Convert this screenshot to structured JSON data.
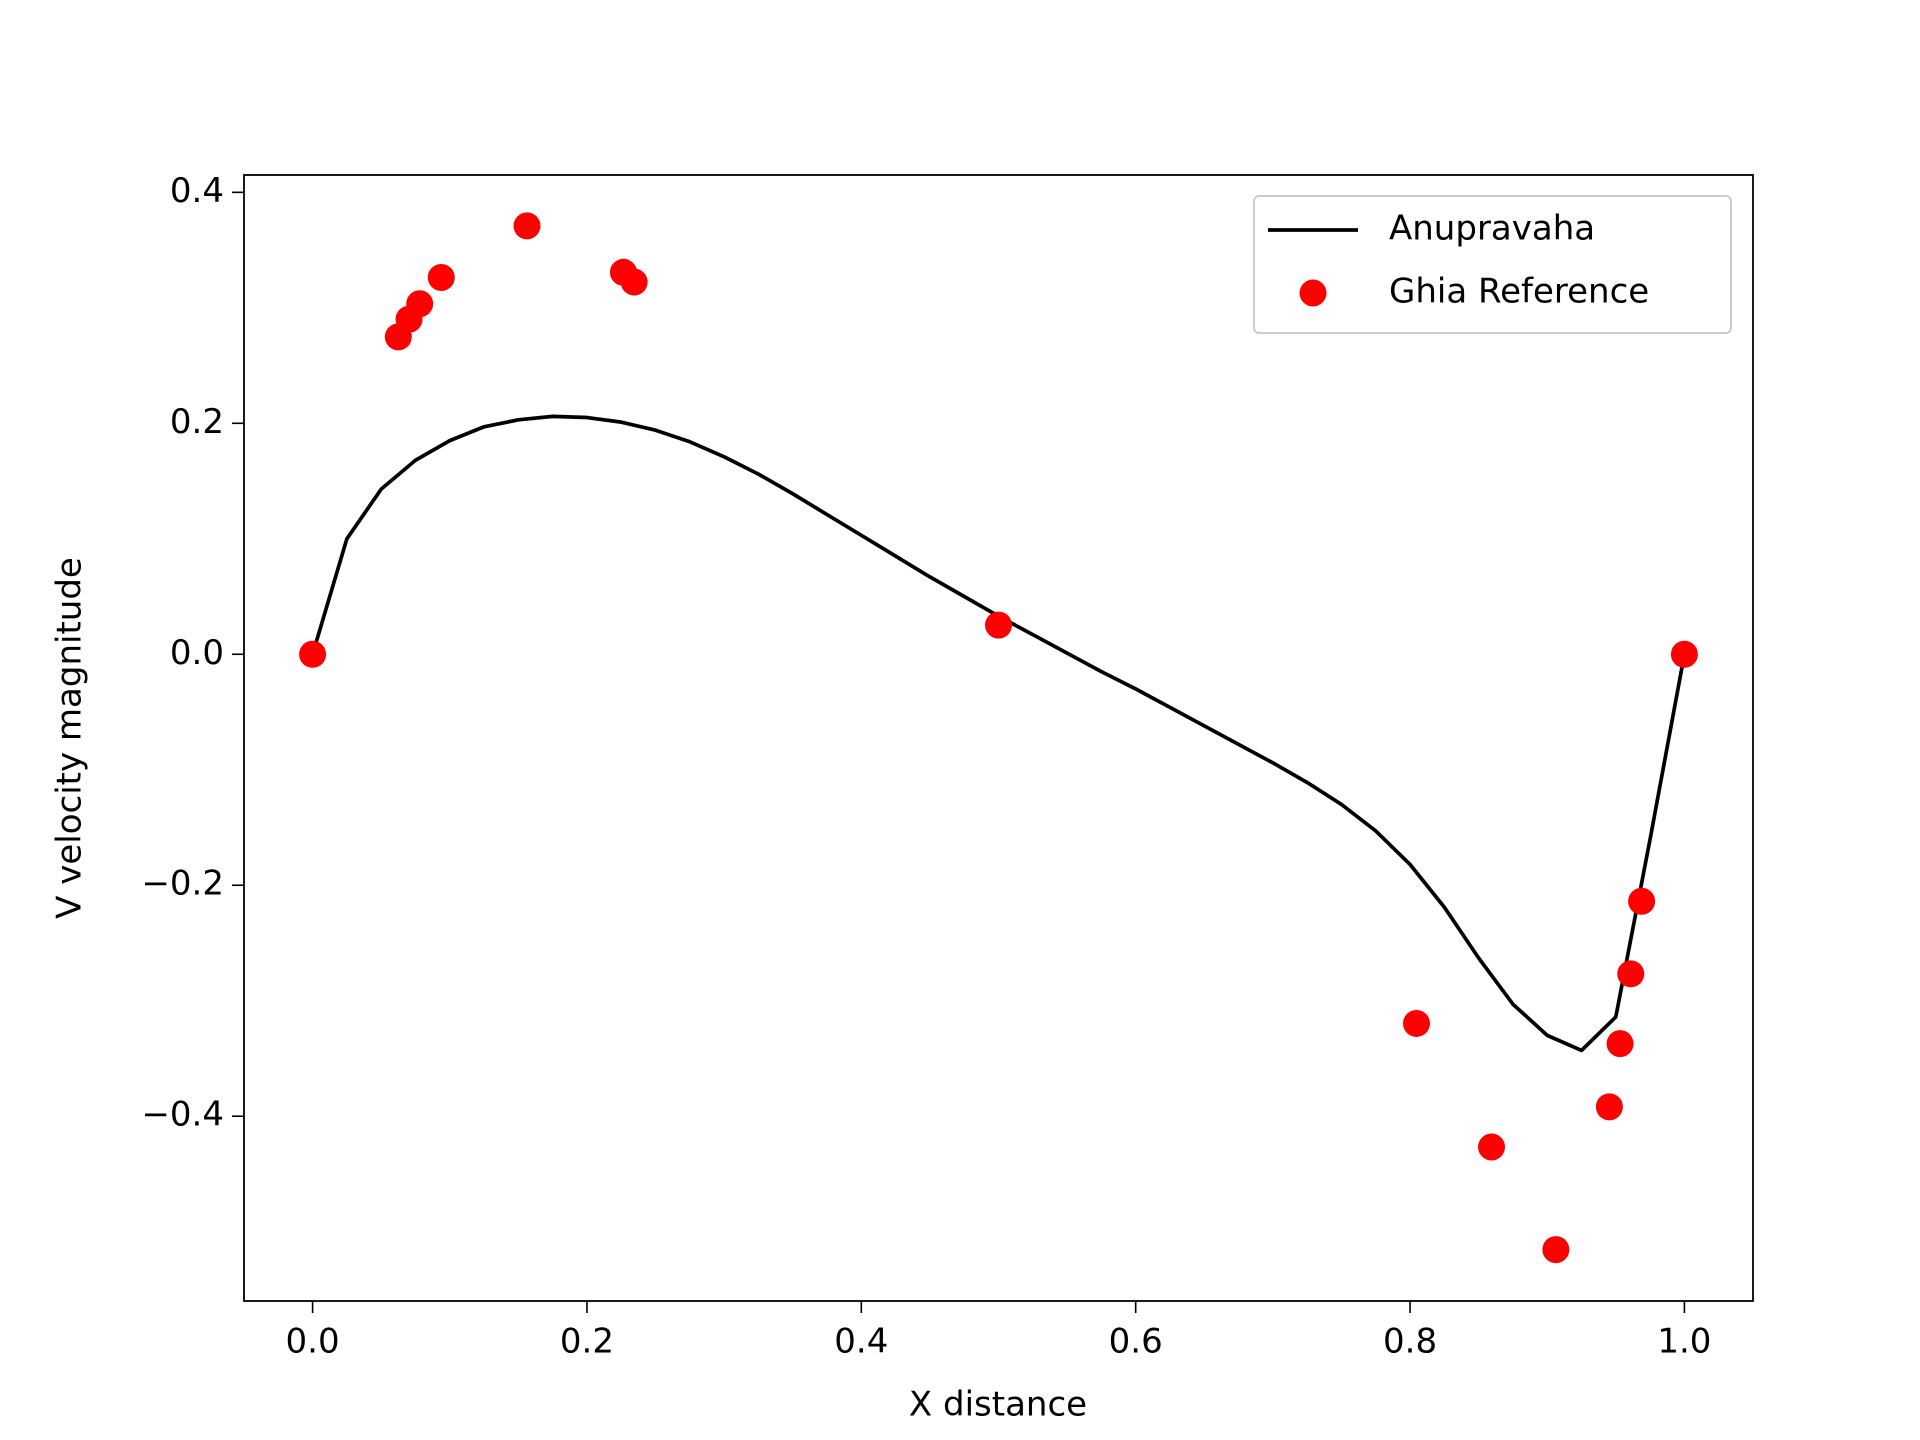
{
  "chart_data": {
    "type": "line",
    "x_label": "X distance",
    "y_label": "V velocity magnitude",
    "xlim": [
      -0.05,
      1.05
    ],
    "ylim": [
      -0.56,
      0.415
    ],
    "xticks": [
      {
        "value": 0,
        "label": "0.0"
      },
      0.2,
      0.4,
      0.6,
      0.8,
      {
        "value": 1,
        "label": "1.0"
      }
    ],
    "yticks": [
      {
        "value": -0.4,
        "label": "−0.4"
      },
      {
        "value": -0.2,
        "label": "−0.2"
      },
      {
        "value": 0,
        "label": "0.0"
      },
      0.2,
      0.4
    ],
    "legend": "upper right",
    "series": [
      {
        "name": "Anupravaha",
        "type": "line",
        "color": "#000000",
        "x": [
          0,
          0.025,
          0.05,
          0.075,
          0.1,
          0.125,
          0.15,
          0.175,
          0.2,
          0.225,
          0.25,
          0.275,
          0.3,
          0.325,
          0.35,
          0.375,
          0.4,
          0.425,
          0.45,
          0.475,
          0.5,
          0.525,
          0.55,
          0.575,
          0.6,
          0.625,
          0.65,
          0.675,
          0.7,
          0.725,
          0.75,
          0.775,
          0.8,
          0.825,
          0.85,
          0.875,
          0.9,
          0.925,
          0.95,
          0.975,
          1.0
        ],
        "values": [
          0,
          0.1,
          0.143,
          0.168,
          0.185,
          0.197,
          0.203,
          0.206,
          0.205,
          0.201,
          0.194,
          0.184,
          0.171,
          0.156,
          0.139,
          0.121,
          0.103,
          0.085,
          0.067,
          0.05,
          0.033,
          0.017,
          0.001,
          -0.015,
          -0.03,
          -0.046,
          -0.062,
          -0.078,
          -0.094,
          -0.111,
          -0.13,
          -0.153,
          -0.182,
          -0.219,
          -0.263,
          -0.303,
          -0.33,
          -0.343,
          -0.314,
          -0.16,
          0
        ]
      },
      {
        "name": "Ghia Reference",
        "type": "scatter",
        "color": "#ff0000",
        "x": [
          0,
          0.0625,
          0.0703,
          0.0781,
          0.0938,
          0.1563,
          0.2266,
          0.2344,
          0.5,
          0.8047,
          0.8594,
          0.9063,
          0.9453,
          0.9531,
          0.9609,
          0.9688,
          1.0
        ],
        "values": [
          0,
          0.27485,
          0.29012,
          0.30353,
          0.32627,
          0.37095,
          0.33075,
          0.32235,
          0.02526,
          -0.31966,
          -0.42665,
          -0.5155,
          -0.39188,
          -0.33714,
          -0.27669,
          -0.21388,
          0
        ]
      }
    ]
  }
}
